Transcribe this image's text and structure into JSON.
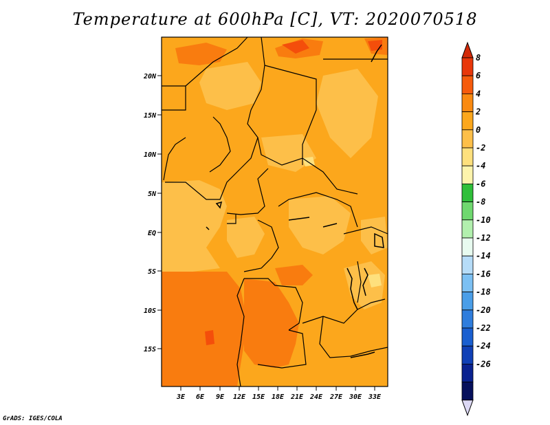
{
  "title": "Temperature at 600hPa [C], VT: 2020070518",
  "credit": "GrADS: IGES/COLA",
  "map": {
    "lat_labels": [
      "20N",
      "15N",
      "10N",
      "5N",
      "EQ",
      "5S",
      "10S",
      "15S"
    ],
    "lon_labels": [
      "3E",
      "6E",
      "9E",
      "12E",
      "15E",
      "18E",
      "21E",
      "24E",
      "27E",
      "30E",
      "33E"
    ],
    "colors": {
      "c0_2": "#fdbf49",
      "c2_4": "#fca71c",
      "c4_6": "#f97c0f",
      "c6_8": "#f44e0b"
    }
  },
  "colorbar": {
    "labels": [
      "8",
      "6",
      "4",
      "2",
      "0",
      "-2",
      "-4",
      "-6",
      "-8",
      "-10",
      "-12",
      "-14",
      "-16",
      "-18",
      "-20",
      "-22",
      "-24",
      "-26"
    ],
    "colors": [
      "#e8370a",
      "#f65b0c",
      "#fa8a11",
      "#fca71c",
      "#fdbf49",
      "#fee07d",
      "#fdf4ac",
      "#2fbf3a",
      "#6fd86f",
      "#b2f0ae",
      "#e8fbf0",
      "#b6dcf8",
      "#7cc0f3",
      "#4a9ee8",
      "#2f7ddd",
      "#1a5fd0",
      "#1040b6",
      "#0a2290",
      "#06105c"
    ],
    "top_color": "#d32a08",
    "bottom_color": "#dcd8f4"
  }
}
